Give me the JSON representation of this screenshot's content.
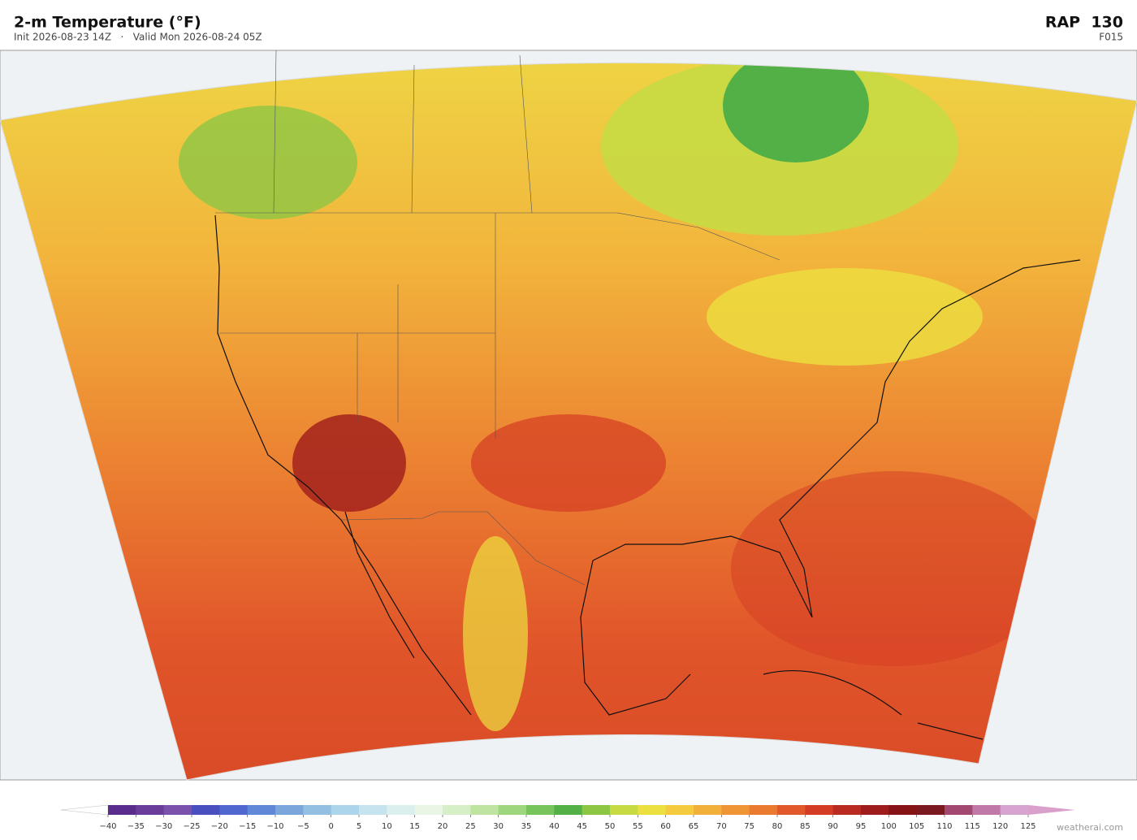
{
  "header": {
    "title": "2-m Temperature  (°F)",
    "subtitle": "Init 2026-08-23 14Z   ·   Valid Mon 2026-08-24 05Z",
    "model": "RAP  130",
    "forecast_hour": "F015"
  },
  "colorbar": {
    "range": [
      -40,
      125
    ],
    "ticks": [
      {
        "value": -40,
        "label": "−40"
      },
      {
        "value": -35,
        "label": "−35"
      },
      {
        "value": -30,
        "label": "−30"
      },
      {
        "value": -25,
        "label": "−25"
      },
      {
        "value": -20,
        "label": "−20"
      },
      {
        "value": -15,
        "label": "−15"
      },
      {
        "value": -10,
        "label": "−10"
      },
      {
        "value": -5,
        "label": "−5"
      },
      0,
      5,
      10,
      15,
      20,
      25,
      30,
      35,
      40,
      45,
      50,
      55,
      60,
      65,
      70,
      75,
      80,
      85,
      90,
      95,
      100,
      105,
      110,
      115,
      120,
      125
    ],
    "colors": [
      "#5a2d8c",
      "#6a3d9a",
      "#7b52ab",
      "#4a4fbf",
      "#4f67cf",
      "#6088d6",
      "#7aa6dc",
      "#93bfe2",
      "#acd4ea",
      "#c6e4f0",
      "#dcefef",
      "#e9f6e6",
      "#d6efc6",
      "#bfe3a0",
      "#9ed67d",
      "#77c45d",
      "#52b047",
      "#8dc643",
      "#c7da44",
      "#ece040",
      "#f4cb3f",
      "#f1b03a",
      "#ef9535",
      "#ea7a30",
      "#e3582a",
      "#d43c24",
      "#bb2a20",
      "#9f1c1c",
      "#861416",
      "#7a1a1e",
      "#a2476f",
      "#c078a8",
      "#d7a3cf"
    ],
    "under_color": "#ffffff",
    "over_color": "#d9a0cc"
  },
  "watermark": "weatherai.com"
}
